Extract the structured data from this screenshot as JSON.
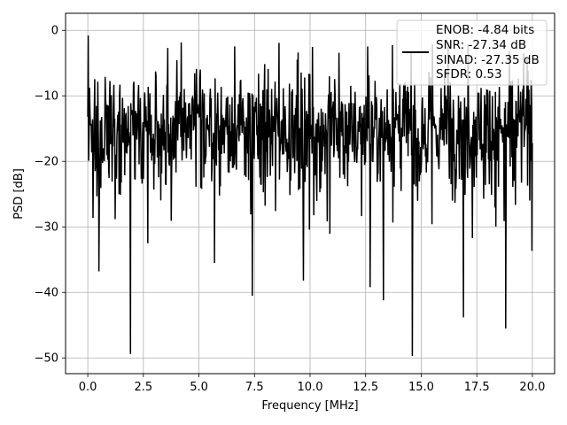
{
  "chart_data": {
    "type": "line",
    "title": "",
    "xlabel": "Frequency [MHz]",
    "ylabel": "PSD [dB]",
    "xlim": [
      -1.0,
      21.0
    ],
    "ylim": [
      -52.4,
      2.6
    ],
    "x_ticks": [
      0.0,
      2.5,
      5.0,
      7.5,
      10.0,
      12.5,
      15.0,
      17.5,
      20.0
    ],
    "x_tick_labels": [
      "0.0",
      "2.5",
      "5.0",
      "7.5",
      "10.0",
      "12.5",
      "15.0",
      "17.5",
      "20.0"
    ],
    "y_ticks": [
      0,
      -10,
      -20,
      -30,
      -40,
      -50
    ],
    "y_tick_labels": [
      "0",
      "−10",
      "−20",
      "−30",
      "−40",
      "−50"
    ],
    "grid": true,
    "line_color": "#000000",
    "series": [
      {
        "name": "",
        "noise": {
          "x_start": 0.0,
          "x_end": 20.0,
          "points": 1024,
          "mean_db": -15,
          "spread_db": 6
        },
        "values_notable": [
          {
            "x": 0.02,
            "y": -0.8
          },
          {
            "x": 1.92,
            "y": -49.4
          },
          {
            "x": 7.4,
            "y": -40.5
          },
          {
            "x": 9.7,
            "y": -38.2
          },
          {
            "x": 14.6,
            "y": -49.7
          },
          {
            "x": 16.9,
            "y": -43.8
          },
          {
            "x": 18.8,
            "y": -45.5
          },
          {
            "x": 12.7,
            "y": -39.2
          },
          {
            "x": 13.3,
            "y": -41.2
          },
          {
            "x": 0.5,
            "y": -36.8
          },
          {
            "x": 2.7,
            "y": -32.5
          },
          {
            "x": 5.7,
            "y": -35.5
          }
        ]
      }
    ],
    "legend": {
      "location": "upper right",
      "lines": [
        "ENOB: -4.84 bits",
        "SNR: -27.34 dB",
        "SINAD: -27.35 dB",
        "SFDR: 0.53"
      ]
    }
  }
}
